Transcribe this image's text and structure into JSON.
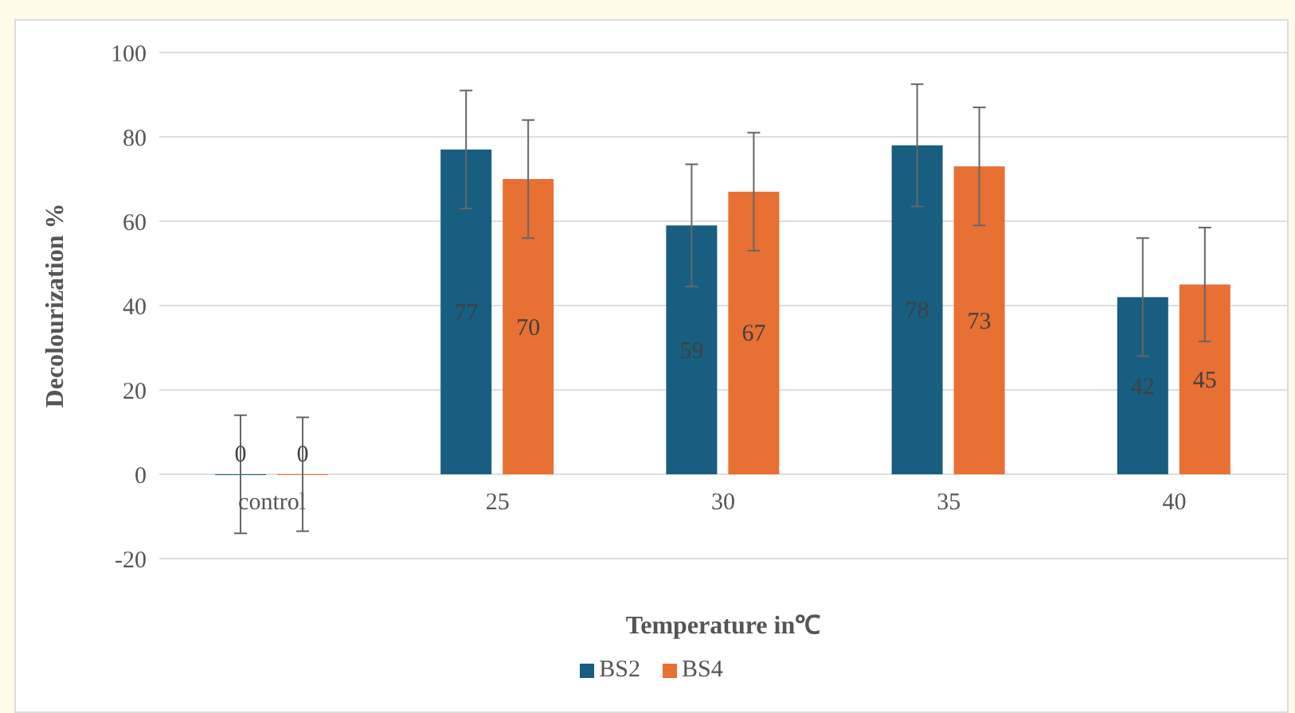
{
  "chart_data": {
    "type": "bar",
    "xlabel": "Temperature in℃",
    "ylabel": "Decolourization %",
    "categories": [
      "control",
      "25",
      "30",
      "35",
      "40"
    ],
    "series": [
      {
        "name": "BS2",
        "color": "#175e80",
        "values": [
          0,
          77,
          59,
          78,
          42
        ],
        "errors": [
          14,
          14,
          14.5,
          14.5,
          14
        ]
      },
      {
        "name": "BS4",
        "color": "#e87033",
        "values": [
          0,
          70,
          67,
          73,
          45
        ],
        "errors": [
          13.5,
          14,
          14,
          14,
          13.5
        ]
      }
    ],
    "ylim": [
      -20,
      100
    ],
    "yticks": [
      -20,
      0,
      20,
      40,
      60,
      80,
      100
    ],
    "grid": "y",
    "legend": "bottom",
    "data_labels": true
  }
}
